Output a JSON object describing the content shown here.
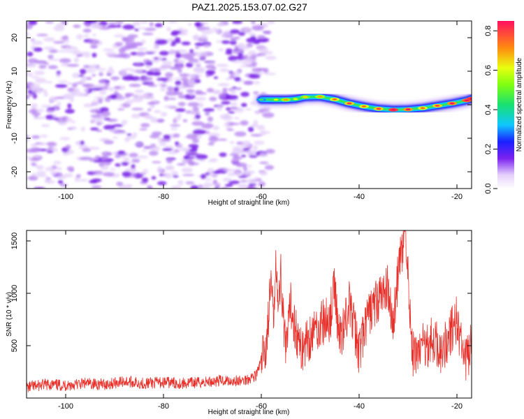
{
  "title": "PAZ1.2025.153.07.02.G27",
  "colors": {
    "snr_line": "#e8302a",
    "signal_band": "#18d0d8",
    "noise": "#8a32e6"
  },
  "chart_data": [
    {
      "type": "heatmap",
      "title": "PAZ1.2025.153.07.02.G27",
      "xlabel": "Height of straight line (km)",
      "ylabel": "Frequency (Hz)",
      "xlim": [
        -108,
        -17
      ],
      "ylim": [
        -25,
        25
      ],
      "xticks": [
        -100,
        -80,
        -60,
        -40,
        -20
      ],
      "yticks": [
        -20,
        -10,
        0,
        10,
        20
      ],
      "colorbar": {
        "label": "Normalized spectral amplitude",
        "range": [
          0.0,
          0.85
        ],
        "ticks": [
          "0.0",
          "0.2",
          "0.4",
          "0.6",
          "0.8"
        ]
      },
      "noise_region": {
        "x_from": -108,
        "x_to": -60,
        "freq_from": -25,
        "freq_to": 25,
        "amplitude_max": 0.15
      },
      "signal_ridge": {
        "x": [
          -60,
          -57,
          -55,
          -53,
          -51,
          -48,
          -45,
          -42,
          -39,
          -36,
          -33,
          -30,
          -27,
          -24,
          -21,
          -18,
          -17
        ],
        "freq": [
          1.5,
          1.5,
          1.5,
          1.7,
          2.3,
          2.4,
          1.6,
          0.4,
          -0.5,
          -1.2,
          -1.5,
          -1.4,
          -1.0,
          -0.3,
          0.4,
          1.3,
          1.8
        ],
        "amplitude": [
          0.3,
          0.45,
          0.55,
          0.45,
          0.5,
          0.55,
          0.6,
          0.65,
          0.6,
          0.65,
          0.8,
          0.7,
          0.6,
          0.65,
          0.7,
          0.75,
          0.8
        ]
      }
    },
    {
      "type": "line",
      "xlabel": "Height of straight line (km)",
      "ylabel": "SNR (10 * v/v)",
      "xlim": [
        -108,
        -17
      ],
      "ylim": [
        0,
        1600
      ],
      "xticks": [
        -100,
        -80,
        -60,
        -40,
        -20
      ],
      "yticks": [
        500,
        1000,
        1500
      ],
      "series": [
        {
          "x": [
            -108,
            -104,
            -100,
            -96,
            -92,
            -88,
            -84,
            -80,
            -76,
            -72,
            -68,
            -64,
            -61,
            -59,
            -58,
            -57.5,
            -57,
            -56.5,
            -56,
            -55,
            -54,
            -52,
            -50,
            -48,
            -46,
            -45,
            -44,
            -42,
            -40,
            -38,
            -36,
            -34,
            -33,
            -32,
            -31,
            -30.5,
            -30,
            -29.5,
            -29,
            -27,
            -25,
            -23,
            -21,
            -20,
            -19,
            -18,
            -17
          ],
          "y": [
            100,
            130,
            120,
            140,
            130,
            160,
            140,
            150,
            140,
            150,
            170,
            160,
            220,
            500,
            1100,
            700,
            1450,
            800,
            1200,
            400,
            900,
            450,
            600,
            700,
            750,
            1050,
            550,
            900,
            450,
            800,
            950,
            1050,
            700,
            1200,
            1450,
            1600,
            1200,
            700,
            400,
            500,
            550,
            450,
            650,
            750,
            450,
            350,
            500
          ]
        }
      ]
    }
  ]
}
